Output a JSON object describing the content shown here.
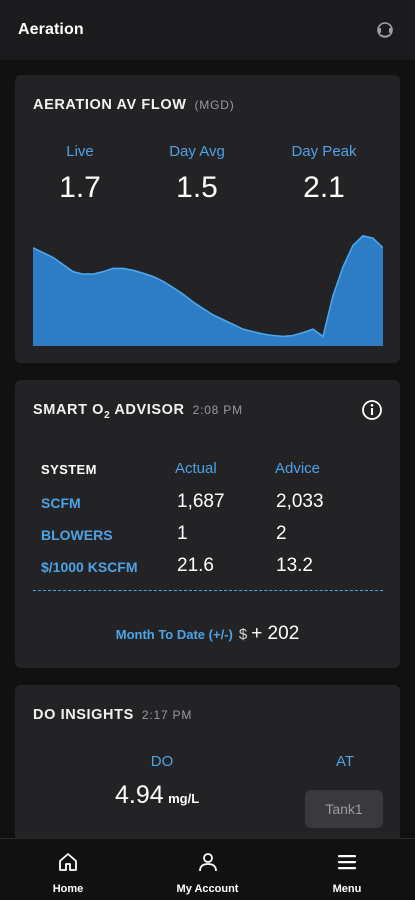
{
  "header": {
    "title": "Aeration",
    "help_icon": "headset-icon"
  },
  "flow_card": {
    "title": "AERATION AV FLOW",
    "unit": "(MGD)",
    "stats": [
      {
        "label": "Live",
        "value": "1.7"
      },
      {
        "label": "Day Avg",
        "value": "1.5"
      },
      {
        "label": "Day Peak",
        "value": "2.1"
      }
    ],
    "chart_data": {
      "type": "area",
      "title": "",
      "xlabel": "",
      "ylabel": "",
      "grid": false,
      "color": "#2f86d6",
      "ylim": [
        0,
        2.4
      ],
      "x": [
        0,
        1,
        2,
        3,
        4,
        5,
        6,
        7,
        8,
        9,
        10,
        11,
        12,
        13,
        14,
        15,
        16,
        17,
        18,
        19,
        20,
        21,
        22,
        23,
        24,
        25,
        26,
        27,
        28,
        29,
        30,
        31,
        32,
        33,
        34,
        35
      ],
      "values": [
        2.05,
        1.95,
        1.85,
        1.7,
        1.55,
        1.5,
        1.5,
        1.55,
        1.62,
        1.62,
        1.58,
        1.52,
        1.45,
        1.35,
        1.22,
        1.08,
        0.92,
        0.78,
        0.65,
        0.55,
        0.45,
        0.35,
        0.3,
        0.25,
        0.22,
        0.2,
        0.22,
        0.28,
        0.35,
        0.2,
        1.05,
        1.65,
        2.1,
        2.3,
        2.25,
        2.05
      ]
    }
  },
  "advisor_card": {
    "title_prefix": "SMART O",
    "title_sub": "2",
    "title_suffix": " ADVISOR",
    "time": "2:08 PM",
    "info_icon": "info-icon",
    "table": {
      "headers": [
        "SYSTEM",
        "Actual",
        "Advice"
      ],
      "rows": [
        {
          "label": "SCFM",
          "actual": "1,687",
          "advice": "2,033"
        },
        {
          "label": "BLOWERS",
          "actual": "1",
          "advice": "2"
        },
        {
          "label": "$/1000 KSCFM",
          "actual": "21.6",
          "advice": "13.2"
        }
      ]
    },
    "mtd": {
      "label": "Month To Date (+/-)",
      "currency": "$",
      "value": "+ 202"
    }
  },
  "do_card": {
    "title": "DO INSIGHTS",
    "time": "2:17 PM",
    "col1": "DO",
    "col2": "AT",
    "do_value": "4.94",
    "do_unit": "mg/L",
    "tank_button": "Tank1"
  },
  "nav": [
    {
      "label": "Home",
      "icon": "home-icon"
    },
    {
      "label": "My Account",
      "icon": "user-icon"
    },
    {
      "label": "Menu",
      "icon": "hamburger-menu-icon"
    }
  ]
}
